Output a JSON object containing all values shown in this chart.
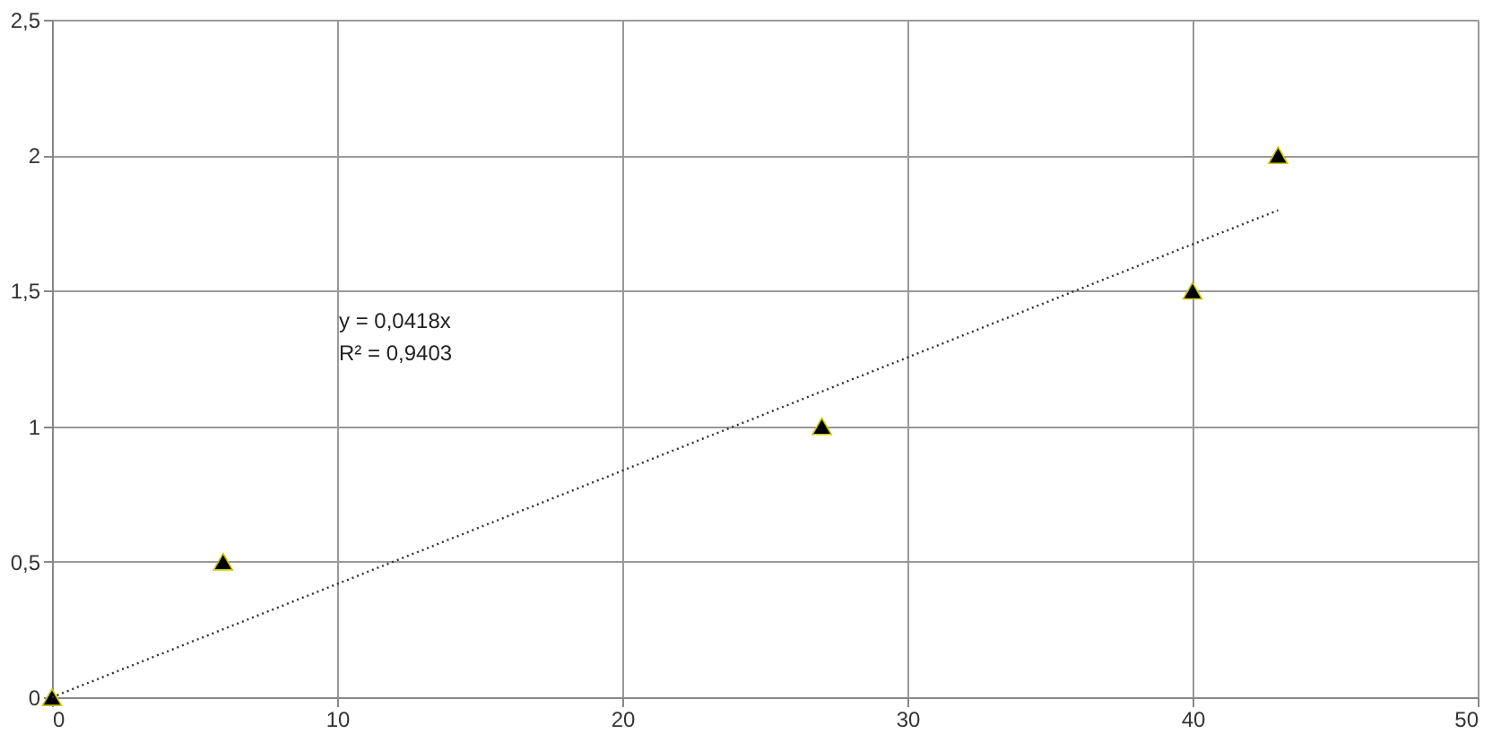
{
  "chart_data": {
    "type": "scatter",
    "marker": "triangle",
    "grid": true,
    "xlim": [
      0,
      50
    ],
    "xticks": [
      0,
      10,
      20,
      30,
      40,
      50
    ],
    "ylim": [
      0,
      2.5
    ],
    "yticks": [
      0,
      {
        "value": 0.5,
        "label": "0,5"
      },
      1,
      {
        "value": 1.5,
        "label": "1,5"
      },
      2,
      {
        "value": 2.5,
        "label": "2,5"
      }
    ],
    "series": [
      {
        "color": "#000000",
        "x": [
          0,
          6,
          27,
          40,
          43
        ],
        "values": [
          0,
          0.5,
          1,
          1.5,
          2
        ]
      },
      {
        "type": "line",
        "color": "#333333",
        "line_style": "dotted",
        "marker": "none",
        "x": [
          0,
          43
        ],
        "values": [
          0,
          1.797
        ]
      }
    ],
    "annotations": [
      "y = 0,0418x",
      "R² = 0,9403"
    ]
  }
}
